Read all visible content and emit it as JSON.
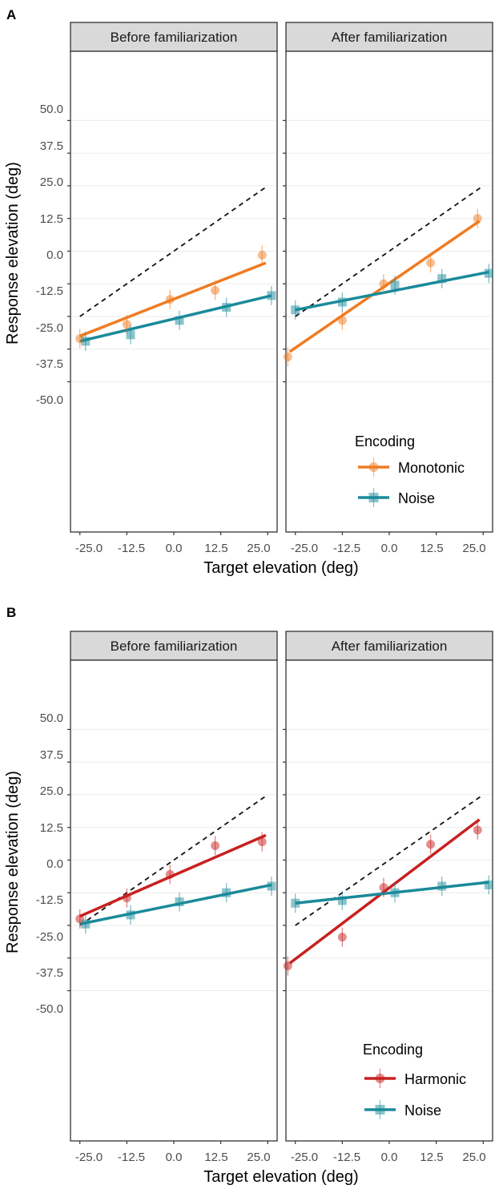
{
  "chart_data": [
    {
      "panel_label": "A",
      "type": "scatter",
      "xlabel": "Target elevation (deg)",
      "ylabel": "Response elevation (deg)",
      "x_ticks": [
        "-25.0",
        "-12.5",
        "0.0",
        "12.5",
        "25.0"
      ],
      "y_ticks": [
        "50.0",
        "37.5",
        "25.0",
        "12.5",
        "0.0",
        "-12.5",
        "-25.0",
        "-37.5",
        "-50.0"
      ],
      "xlim": [
        -27.5,
        27.5
      ],
      "ylim": [
        -107.5,
        76.5
      ],
      "legend": {
        "title": "Encoding",
        "position": "bottom-right"
      },
      "facets": [
        {
          "strip_label": "Before familiarization",
          "series": [
            {
              "name": "Monotonic",
              "color": "#f07b22",
              "marker": "circle",
              "points": [
                [
                  -25,
                  -33.5
                ],
                [
                  -12.5,
                  -28
                ],
                [
                  -1,
                  -18.5
                ],
                [
                  11,
                  -15
                ],
                [
                  23.5,
                  -1.5
                ]
              ],
              "fit": [
                [
                  -25,
                  -32.5
                ],
                [
                  24.5,
                  -4.5
                ]
              ]
            },
            {
              "name": "Noise",
              "color": "#1a8a9a",
              "marker": "square",
              "points": [
                [
                  -23.5,
                  -34.5
                ],
                [
                  -11.5,
                  -32
                ],
                [
                  1.5,
                  -26.5
                ],
                [
                  14,
                  -21.5
                ],
                [
                  26,
                  -17
                ]
              ],
              "fit": [
                [
                  -25,
                  -34.5
                ],
                [
                  26,
                  -17
                ]
              ]
            }
          ],
          "reference_line": [
            [
              -25,
              -25
            ],
            [
              25,
              25
            ]
          ]
        },
        {
          "strip_label": "After familiarization",
          "series": [
            {
              "name": "Monotonic",
              "color": "#f07b22",
              "marker": "circle",
              "points": [
                [
                  -27,
                  -40.5
                ],
                [
                  -12.5,
                  -26.5
                ],
                [
                  -1.5,
                  -12.5
                ],
                [
                  11,
                  -4.5
                ],
                [
                  23.5,
                  12.5
                ]
              ],
              "fit": [
                [
                  -26.5,
                  -38.5
                ],
                [
                  24,
                  11.5
                ]
              ]
            },
            {
              "name": "Noise",
              "color": "#1a8a9a",
              "marker": "square",
              "points": [
                [
                  -25,
                  -22.5
                ],
                [
                  -12.5,
                  -19.5
                ],
                [
                  1.5,
                  -13
                ],
                [
                  14,
                  -10.5
                ],
                [
                  26.5,
                  -8.5
                ]
              ],
              "fit": [
                [
                  -25,
                  -22.5
                ],
                [
                  26.5,
                  -8
                ]
              ]
            }
          ],
          "reference_line": [
            [
              -25,
              -25
            ],
            [
              25,
              25
            ]
          ]
        }
      ]
    },
    {
      "panel_label": "B",
      "type": "scatter",
      "xlabel": "Target elevation (deg)",
      "ylabel": "Response elevation (deg)",
      "x_ticks": [
        "-25.0",
        "-12.5",
        "0.0",
        "12.5",
        "25.0"
      ],
      "y_ticks": [
        "50.0",
        "37.5",
        "25.0",
        "12.5",
        "0.0",
        "-12.5",
        "-25.0",
        "-37.5",
        "-50.0"
      ],
      "xlim": [
        -27.5,
        27.5
      ],
      "ylim": [
        -107.5,
        76.5
      ],
      "legend": {
        "title": "Encoding",
        "position": "bottom-right"
      },
      "facets": [
        {
          "strip_label": "Before familiarization",
          "series": [
            {
              "name": "Harmonic",
              "color": "#c82020",
              "marker": "circle",
              "points": [
                [
                  -25,
                  -22.5
                ],
                [
                  -12.5,
                  -14.5
                ],
                [
                  -1,
                  -5.5
                ],
                [
                  11,
                  5.5
                ],
                [
                  23.5,
                  7
                ]
              ],
              "fit": [
                [
                  -25,
                  -21.5
                ],
                [
                  24.5,
                  9.5
                ]
              ]
            },
            {
              "name": "Noise",
              "color": "#1a8a9a",
              "marker": "square",
              "points": [
                [
                  -23.5,
                  -24.5
                ],
                [
                  -11.5,
                  -21
                ],
                [
                  1.5,
                  -16
                ],
                [
                  14,
                  -12.5
                ],
                [
                  26,
                  -10
                ]
              ],
              "fit": [
                [
                  -25,
                  -24.5
                ],
                [
                  26,
                  -9.5
                ]
              ]
            }
          ],
          "reference_line": [
            [
              -25,
              -25
            ],
            [
              25,
              25
            ]
          ]
        },
        {
          "strip_label": "After familiarization",
          "series": [
            {
              "name": "Harmonic",
              "color": "#c82020",
              "marker": "circle",
              "points": [
                [
                  -27,
                  -40.5
                ],
                [
                  -12.5,
                  -29.5
                ],
                [
                  -1.5,
                  -10.5
                ],
                [
                  11,
                  6
                ],
                [
                  23.5,
                  11.5
                ]
              ],
              "fit": [
                [
                  -26.5,
                  -39.5
                ],
                [
                  24,
                  15.5
                ]
              ]
            },
            {
              "name": "Noise",
              "color": "#1a8a9a",
              "marker": "square",
              "points": [
                [
                  -25,
                  -16.5
                ],
                [
                  -12.5,
                  -15.5
                ],
                [
                  1.5,
                  -12.5
                ],
                [
                  14,
                  -10
                ],
                [
                  26.5,
                  -9.5
                ]
              ],
              "fit": [
                [
                  -25,
                  -16.5
                ],
                [
                  26.5,
                  -8.5
                ]
              ]
            }
          ],
          "reference_line": [
            [
              -25,
              -25
            ],
            [
              25,
              25
            ]
          ]
        }
      ]
    }
  ]
}
